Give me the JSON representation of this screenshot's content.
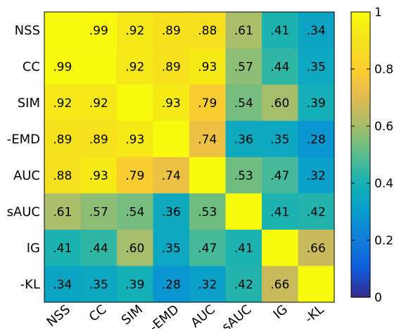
{
  "chart_data": {
    "type": "heatmap",
    "title": "",
    "xlabel": "",
    "ylabel": "",
    "row_labels": [
      "NSS",
      "CC",
      "SIM",
      "-EMD",
      "AUC",
      "sAUC",
      "IG",
      "-KL"
    ],
    "col_labels": [
      "NSS",
      "CC",
      "SIM",
      "-EMD",
      "AUC",
      "sAUC",
      "IG",
      "-KL"
    ],
    "values": [
      [
        1.0,
        0.99,
        0.92,
        0.89,
        0.88,
        0.61,
        0.41,
        0.34
      ],
      [
        0.99,
        1.0,
        0.92,
        0.89,
        0.93,
        0.57,
        0.44,
        0.35
      ],
      [
        0.92,
        0.92,
        1.0,
        0.93,
        0.79,
        0.54,
        0.6,
        0.39
      ],
      [
        0.89,
        0.89,
        0.93,
        1.0,
        0.74,
        0.36,
        0.35,
        0.28
      ],
      [
        0.88,
        0.93,
        0.79,
        0.74,
        1.0,
        0.53,
        0.47,
        0.32
      ],
      [
        0.61,
        0.57,
        0.54,
        0.36,
        0.53,
        1.0,
        0.41,
        0.42
      ],
      [
        0.41,
        0.44,
        0.6,
        0.35,
        0.47,
        0.41,
        1.0,
        0.66
      ],
      [
        0.34,
        0.35,
        0.39,
        0.28,
        0.32,
        0.42,
        0.66,
        1.0
      ]
    ],
    "cell_labels": [
      [
        "",
        ".99",
        ".92",
        ".89",
        ".88",
        ".61",
        ".41",
        ".34"
      ],
      [
        ".99",
        "",
        ".92",
        ".89",
        ".93",
        ".57",
        ".44",
        ".35"
      ],
      [
        ".92",
        ".92",
        "",
        ".93",
        ".79",
        ".54",
        ".60",
        ".39"
      ],
      [
        ".89",
        ".89",
        ".93",
        "",
        ".74",
        ".36",
        ".35",
        ".28"
      ],
      [
        ".88",
        ".93",
        ".79",
        ".74",
        "",
        ".53",
        ".47",
        ".32"
      ],
      [
        ".61",
        ".57",
        ".54",
        ".36",
        ".53",
        "",
        ".41",
        ".42"
      ],
      [
        ".41",
        ".44",
        ".60",
        ".35",
        ".47",
        ".41",
        "",
        ".66"
      ],
      [
        ".34",
        ".35",
        ".39",
        ".28",
        ".32",
        ".42",
        ".66",
        ""
      ]
    ],
    "colormap": "parula",
    "colorbar": {
      "range": [
        0,
        1
      ],
      "ticks": [
        0,
        0.2,
        0.4,
        0.6,
        0.8,
        1
      ],
      "tick_labels": [
        "0",
        "0.2",
        "0.4",
        "0.6",
        "0.8",
        "1"
      ]
    },
    "grid": false
  }
}
